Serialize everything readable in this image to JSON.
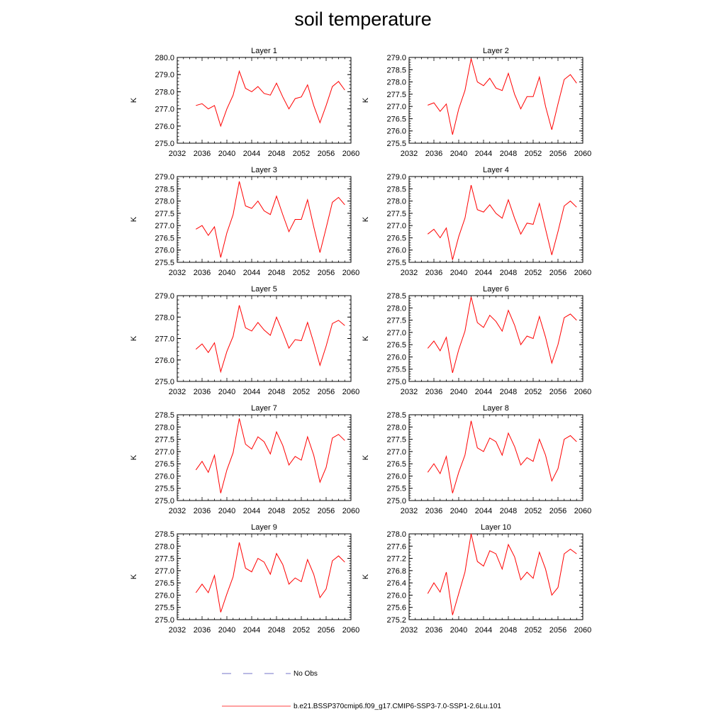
{
  "title": "soil temperature",
  "legend": {
    "obs_label": "No Obs",
    "model_label": "b.e21.BSSP370cmip6.f09_g17.CMIP6-SSP3-7.0-SSP1-2.6Lu.101",
    "obs_color": "#4a4ab8",
    "model_color": "#ff0000"
  },
  "chart_data": [
    {
      "type": "line",
      "title": "Layer 1",
      "ylabel": "K",
      "xlim": [
        2032,
        2060
      ],
      "xticks": [
        2032,
        2036,
        2040,
        2044,
        2048,
        2052,
        2056,
        2060
      ],
      "ylim": [
        275.0,
        280.0
      ],
      "yticks": [
        "275.0",
        "276.0",
        "277.0",
        "278.0",
        "279.0",
        "280.0"
      ],
      "minor_y": 0.2,
      "x": [
        2035,
        2036,
        2037,
        2038,
        2039,
        2040,
        2041,
        2042,
        2043,
        2044,
        2045,
        2046,
        2047,
        2048,
        2049,
        2050,
        2051,
        2052,
        2053,
        2054,
        2055,
        2056,
        2057,
        2058,
        2059
      ],
      "series": [
        {
          "values": [
            277.2,
            277.3,
            277.0,
            277.2,
            276.0,
            277.0,
            277.8,
            279.2,
            278.2,
            278.0,
            278.3,
            277.9,
            277.8,
            278.5,
            277.7,
            277.0,
            277.6,
            277.7,
            278.4,
            277.2,
            276.2,
            277.2,
            278.3,
            278.6,
            278.1
          ],
          "color": "#ff0000"
        }
      ]
    },
    {
      "type": "line",
      "title": "Layer 2",
      "ylabel": "K",
      "xlim": [
        2032,
        2060
      ],
      "xticks": [
        2032,
        2036,
        2040,
        2044,
        2048,
        2052,
        2056,
        2060
      ],
      "ylim": [
        275.5,
        279.0
      ],
      "yticks": [
        "275.5",
        "276.0",
        "276.5",
        "277.0",
        "277.5",
        "278.0",
        "278.5",
        "279.0"
      ],
      "minor_y": 0.1,
      "x": [
        2035,
        2036,
        2037,
        2038,
        2039,
        2040,
        2041,
        2042,
        2043,
        2044,
        2045,
        2046,
        2047,
        2048,
        2049,
        2050,
        2051,
        2052,
        2053,
        2054,
        2055,
        2056,
        2057,
        2058,
        2059
      ],
      "series": [
        {
          "values": [
            277.05,
            277.15,
            276.8,
            277.1,
            275.85,
            276.9,
            277.65,
            278.95,
            278.0,
            277.85,
            278.15,
            277.75,
            277.65,
            278.35,
            277.5,
            276.9,
            277.4,
            277.4,
            278.2,
            277.0,
            276.05,
            277.1,
            278.1,
            278.3,
            277.95
          ],
          "color": "#ff0000"
        }
      ]
    },
    {
      "type": "line",
      "title": "Layer 3",
      "ylabel": "K",
      "xlim": [
        2032,
        2060
      ],
      "xticks": [
        2032,
        2036,
        2040,
        2044,
        2048,
        2052,
        2056,
        2060
      ],
      "ylim": [
        275.5,
        279.0
      ],
      "yticks": [
        "275.5",
        "276.0",
        "276.5",
        "277.0",
        "277.5",
        "278.0",
        "278.5",
        "279.0"
      ],
      "minor_y": 0.1,
      "x": [
        2035,
        2036,
        2037,
        2038,
        2039,
        2040,
        2041,
        2042,
        2043,
        2044,
        2045,
        2046,
        2047,
        2048,
        2049,
        2050,
        2051,
        2052,
        2053,
        2054,
        2055,
        2056,
        2057,
        2058,
        2059
      ],
      "series": [
        {
          "values": [
            276.85,
            277.0,
            276.6,
            276.95,
            275.7,
            276.7,
            277.45,
            278.8,
            277.8,
            277.7,
            278.0,
            277.6,
            277.45,
            278.2,
            277.45,
            276.75,
            277.25,
            277.25,
            278.05,
            276.95,
            275.9,
            276.9,
            277.95,
            278.15,
            277.85
          ],
          "color": "#ff0000"
        }
      ]
    },
    {
      "type": "line",
      "title": "Layer 4",
      "ylabel": "K",
      "xlim": [
        2032,
        2060
      ],
      "xticks": [
        2032,
        2036,
        2040,
        2044,
        2048,
        2052,
        2056,
        2060
      ],
      "ylim": [
        275.5,
        279.0
      ],
      "yticks": [
        "275.5",
        "276.0",
        "276.5",
        "277.0",
        "277.5",
        "278.0",
        "278.5",
        "279.0"
      ],
      "minor_y": 0.1,
      "x": [
        2035,
        2036,
        2037,
        2038,
        2039,
        2040,
        2041,
        2042,
        2043,
        2044,
        2045,
        2046,
        2047,
        2048,
        2049,
        2050,
        2051,
        2052,
        2053,
        2054,
        2055,
        2056,
        2057,
        2058,
        2059
      ],
      "series": [
        {
          "values": [
            276.65,
            276.85,
            276.5,
            276.9,
            275.6,
            276.55,
            277.3,
            278.65,
            277.65,
            277.55,
            277.85,
            277.5,
            277.3,
            278.05,
            277.3,
            276.65,
            277.1,
            277.05,
            277.9,
            276.85,
            275.8,
            276.75,
            277.8,
            278.0,
            277.75
          ],
          "color": "#ff0000"
        }
      ]
    },
    {
      "type": "line",
      "title": "Layer 5",
      "ylabel": "K",
      "xlim": [
        2032,
        2060
      ],
      "xticks": [
        2032,
        2036,
        2040,
        2044,
        2048,
        2052,
        2056,
        2060
      ],
      "ylim": [
        275.0,
        279.0
      ],
      "yticks": [
        "275.0",
        "276.0",
        "277.0",
        "278.0",
        "279.0"
      ],
      "minor_y": 0.2,
      "x": [
        2035,
        2036,
        2037,
        2038,
        2039,
        2040,
        2041,
        2042,
        2043,
        2044,
        2045,
        2046,
        2047,
        2048,
        2049,
        2050,
        2051,
        2052,
        2053,
        2054,
        2055,
        2056,
        2057,
        2058,
        2059
      ],
      "series": [
        {
          "values": [
            276.5,
            276.75,
            276.35,
            276.8,
            275.45,
            276.4,
            277.1,
            278.55,
            277.5,
            277.35,
            277.75,
            277.4,
            277.15,
            278.0,
            277.3,
            276.55,
            276.95,
            276.9,
            277.75,
            276.8,
            275.75,
            276.65,
            277.7,
            277.85,
            277.6
          ],
          "color": "#ff0000"
        }
      ]
    },
    {
      "type": "line",
      "title": "Layer 6",
      "ylabel": "K",
      "xlim": [
        2032,
        2060
      ],
      "xticks": [
        2032,
        2036,
        2040,
        2044,
        2048,
        2052,
        2056,
        2060
      ],
      "ylim": [
        275.0,
        278.5
      ],
      "yticks": [
        "275.0",
        "275.5",
        "276.0",
        "276.5",
        "277.0",
        "277.5",
        "278.0",
        "278.5"
      ],
      "minor_y": 0.1,
      "x": [
        2035,
        2036,
        2037,
        2038,
        2039,
        2040,
        2041,
        2042,
        2043,
        2044,
        2045,
        2046,
        2047,
        2048,
        2049,
        2050,
        2051,
        2052,
        2053,
        2054,
        2055,
        2056,
        2057,
        2058,
        2059
      ],
      "series": [
        {
          "values": [
            276.35,
            276.65,
            276.25,
            276.8,
            275.35,
            276.3,
            277.05,
            278.45,
            277.4,
            277.2,
            277.7,
            277.45,
            277.05,
            277.9,
            277.3,
            276.5,
            276.85,
            276.75,
            277.65,
            276.8,
            275.75,
            276.5,
            277.6,
            277.75,
            277.5
          ],
          "color": "#ff0000"
        }
      ]
    },
    {
      "type": "line",
      "title": "Layer 7",
      "ylabel": "K",
      "xlim": [
        2032,
        2060
      ],
      "xticks": [
        2032,
        2036,
        2040,
        2044,
        2048,
        2052,
        2056,
        2060
      ],
      "ylim": [
        275.0,
        278.5
      ],
      "yticks": [
        "275.0",
        "275.5",
        "276.0",
        "276.5",
        "277.0",
        "277.5",
        "278.0",
        "278.5"
      ],
      "minor_y": 0.1,
      "x": [
        2035,
        2036,
        2037,
        2038,
        2039,
        2040,
        2041,
        2042,
        2043,
        2044,
        2045,
        2046,
        2047,
        2048,
        2049,
        2050,
        2051,
        2052,
        2053,
        2054,
        2055,
        2056,
        2057,
        2058,
        2059
      ],
      "series": [
        {
          "values": [
            276.25,
            276.6,
            276.15,
            276.85,
            275.3,
            276.25,
            276.95,
            278.35,
            277.3,
            277.1,
            277.6,
            277.4,
            276.9,
            277.8,
            277.25,
            276.45,
            276.8,
            276.65,
            277.6,
            276.85,
            275.75,
            276.35,
            277.55,
            277.7,
            277.45
          ],
          "color": "#ff0000"
        }
      ]
    },
    {
      "type": "line",
      "title": "Layer 8",
      "ylabel": "K",
      "xlim": [
        2032,
        2060
      ],
      "xticks": [
        2032,
        2036,
        2040,
        2044,
        2048,
        2052,
        2056,
        2060
      ],
      "ylim": [
        275.0,
        278.5
      ],
      "yticks": [
        "275.0",
        "275.5",
        "276.0",
        "276.5",
        "277.0",
        "277.5",
        "278.0",
        "278.5"
      ],
      "minor_y": 0.1,
      "x": [
        2035,
        2036,
        2037,
        2038,
        2039,
        2040,
        2041,
        2042,
        2043,
        2044,
        2045,
        2046,
        2047,
        2048,
        2049,
        2050,
        2051,
        2052,
        2053,
        2054,
        2055,
        2056,
        2057,
        2058,
        2059
      ],
      "series": [
        {
          "values": [
            276.15,
            276.5,
            276.1,
            276.8,
            275.3,
            276.15,
            276.85,
            278.25,
            277.15,
            277.0,
            277.55,
            277.4,
            276.85,
            277.75,
            277.2,
            276.45,
            276.75,
            276.6,
            277.5,
            276.85,
            275.8,
            276.3,
            277.5,
            277.65,
            277.4
          ],
          "color": "#ff0000"
        }
      ]
    },
    {
      "type": "line",
      "title": "Layer 9",
      "ylabel": "K",
      "xlim": [
        2032,
        2060
      ],
      "xticks": [
        2032,
        2036,
        2040,
        2044,
        2048,
        2052,
        2056,
        2060
      ],
      "ylim": [
        275.0,
        278.5
      ],
      "yticks": [
        "275.0",
        "275.5",
        "276.0",
        "276.5",
        "277.0",
        "277.5",
        "278.0",
        "278.5"
      ],
      "minor_y": 0.1,
      "x": [
        2035,
        2036,
        2037,
        2038,
        2039,
        2040,
        2041,
        2042,
        2043,
        2044,
        2045,
        2046,
        2047,
        2048,
        2049,
        2050,
        2051,
        2052,
        2053,
        2054,
        2055,
        2056,
        2057,
        2058,
        2059
      ],
      "series": [
        {
          "values": [
            276.1,
            276.45,
            276.1,
            276.8,
            275.3,
            276.05,
            276.75,
            278.15,
            277.1,
            276.95,
            277.5,
            277.35,
            276.85,
            277.7,
            277.25,
            276.45,
            276.7,
            276.55,
            277.45,
            276.85,
            275.9,
            276.25,
            277.4,
            277.6,
            277.35
          ],
          "color": "#ff0000"
        }
      ]
    },
    {
      "type": "line",
      "title": "Layer 10",
      "ylabel": "K",
      "xlim": [
        2032,
        2060
      ],
      "xticks": [
        2032,
        2036,
        2040,
        2044,
        2048,
        2052,
        2056,
        2060
      ],
      "ylim": [
        275.2,
        278.0
      ],
      "yticks": [
        "275.2",
        "275.6",
        "276.0",
        "276.4",
        "276.8",
        "277.2",
        "277.6",
        "278.0"
      ],
      "minor_y": 0.1,
      "x": [
        2035,
        2036,
        2037,
        2038,
        2039,
        2040,
        2041,
        2042,
        2043,
        2044,
        2045,
        2046,
        2047,
        2048,
        2049,
        2050,
        2051,
        2052,
        2053,
        2054,
        2055,
        2056,
        2057,
        2058,
        2059
      ],
      "series": [
        {
          "values": [
            276.05,
            276.4,
            276.1,
            276.75,
            275.35,
            276.05,
            276.75,
            278.0,
            277.1,
            276.95,
            277.45,
            277.35,
            276.85,
            277.65,
            277.25,
            276.5,
            276.75,
            276.55,
            277.4,
            276.85,
            276.0,
            276.25,
            277.35,
            277.5,
            277.35
          ],
          "color": "#ff0000"
        }
      ]
    }
  ]
}
